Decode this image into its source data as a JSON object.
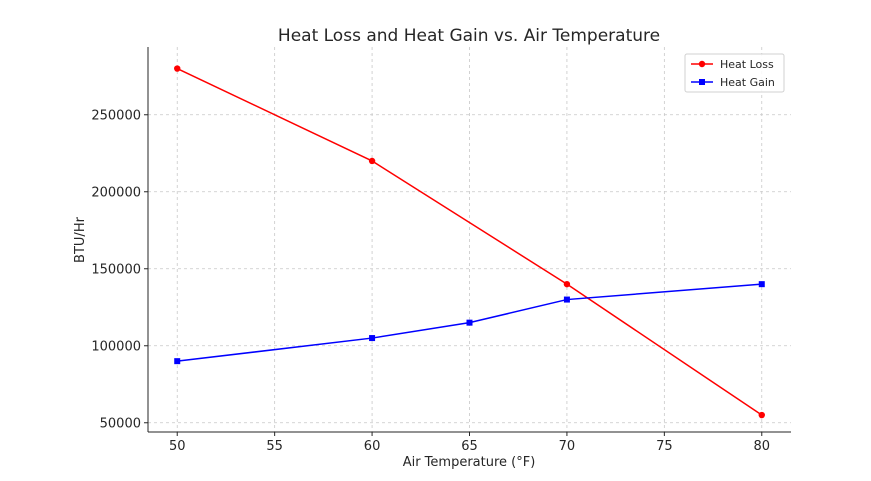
{
  "chart_data": {
    "type": "line",
    "title": "Heat Loss and Heat Gain vs. Air Temperature",
    "xlabel": "Air Temperature (°F)",
    "ylabel": "BTU/Hr",
    "xlim": [
      48.5,
      81.5
    ],
    "ylim": [
      44000,
      294000
    ],
    "xticks": [
      50,
      55,
      60,
      65,
      70,
      75,
      80
    ],
    "yticks": [
      50000,
      100000,
      150000,
      200000,
      250000
    ],
    "grid": true,
    "legend_position": "top-right",
    "series": [
      {
        "name": "Heat Loss",
        "color": "#ff0000",
        "marker": "circle",
        "points": [
          [
            50,
            280000
          ],
          [
            60,
            220000
          ],
          [
            70,
            140000
          ],
          [
            80,
            55000
          ]
        ]
      },
      {
        "name": "Heat Gain",
        "color": "#0000ff",
        "marker": "square",
        "points": [
          [
            50,
            90000
          ],
          [
            60,
            105000
          ],
          [
            65,
            115000
          ],
          [
            70,
            130000
          ],
          [
            80,
            140000
          ]
        ]
      }
    ]
  }
}
